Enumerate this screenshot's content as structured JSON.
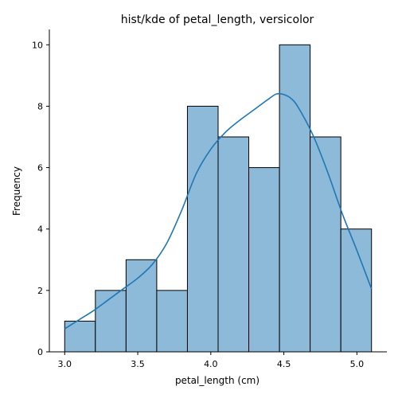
{
  "chart_data": {
    "type": "bar",
    "title": "hist/kde of petal_length, versicolor",
    "xlabel": "petal_length (cm)",
    "ylabel": "Frequency",
    "xlim": [
      2.895,
      5.205
    ],
    "ylim": [
      0,
      10.5
    ],
    "xticks": [
      3.0,
      3.5,
      4.0,
      4.5,
      5.0
    ],
    "xtick_labels": [
      "3.0",
      "3.5",
      "4.0",
      "4.5",
      "5.0"
    ],
    "yticks": [
      0,
      2,
      4,
      6,
      8,
      10
    ],
    "ytick_labels": [
      "0",
      "2",
      "4",
      "6",
      "8",
      "10"
    ],
    "bin_edges": [
      3.0,
      3.21,
      3.42,
      3.63,
      3.84,
      4.05,
      4.26,
      4.47,
      4.68,
      4.89,
      5.1
    ],
    "values": [
      1,
      2,
      3,
      2,
      8,
      7,
      6,
      10,
      7,
      4
    ],
    "series": [
      {
        "type": "line",
        "x": [
          3.0,
          3.1,
          3.2,
          3.3,
          3.4,
          3.5,
          3.6,
          3.7,
          3.8,
          3.9,
          4.0,
          4.1,
          4.2,
          4.3,
          4.4,
          4.45,
          4.5,
          4.55,
          4.6,
          4.7,
          4.8,
          4.9,
          5.0,
          5.1
        ],
        "y": [
          0.75,
          1.05,
          1.35,
          1.7,
          2.05,
          2.4,
          2.85,
          3.55,
          4.6,
          5.8,
          6.6,
          7.15,
          7.55,
          7.9,
          8.25,
          8.4,
          8.38,
          8.25,
          7.95,
          7.05,
          5.85,
          4.5,
          3.3,
          2.05
        ],
        "color": "#1f77b4"
      }
    ],
    "bar_color": "#8ebad9",
    "grid": false,
    "legend": "none"
  }
}
